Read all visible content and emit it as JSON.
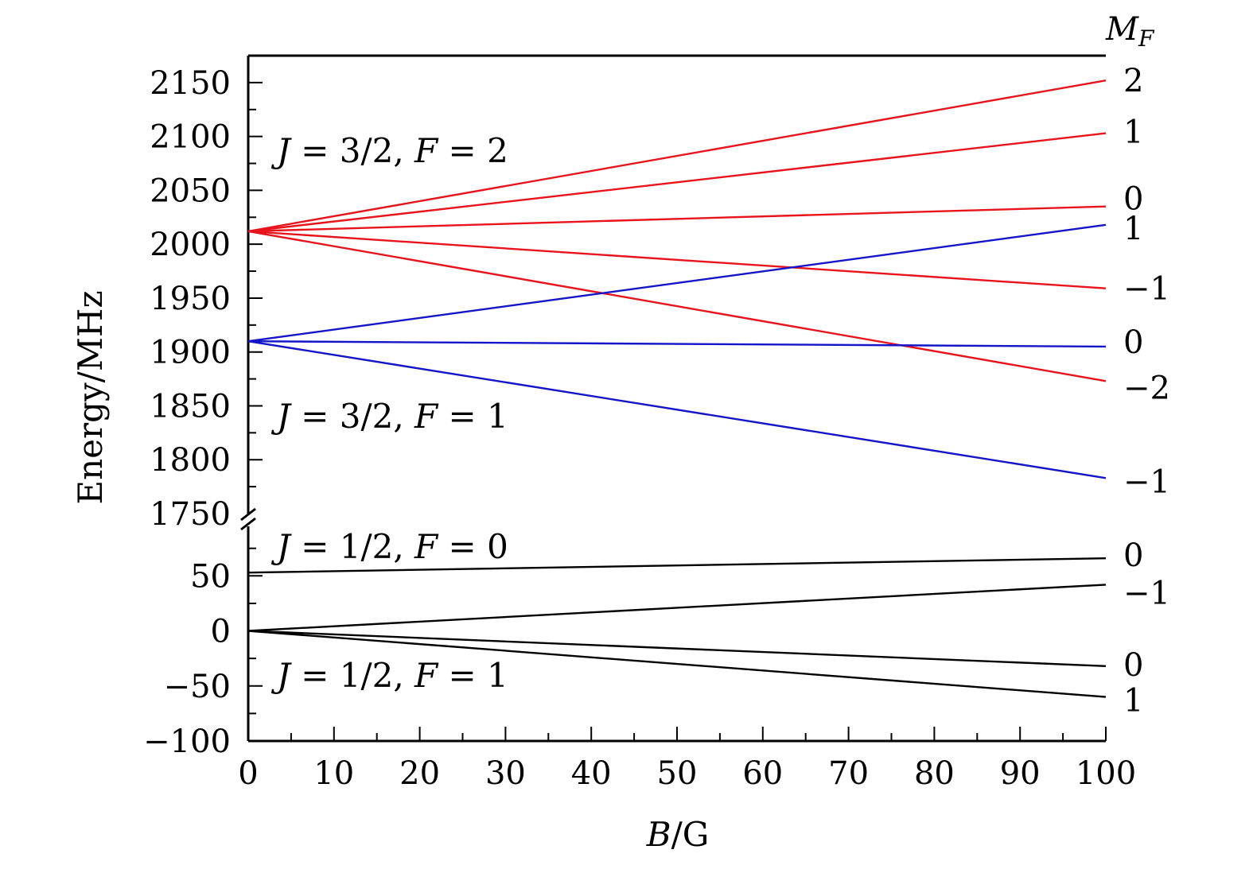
{
  "chart_data": {
    "type": "line",
    "xlabel": "B/G",
    "xlabel_parts": {
      "var": "B",
      "rest": "/G"
    },
    "ylabel": "Energy/MHz",
    "xlim": [
      0,
      100
    ],
    "x_ticks": [
      "0",
      "10",
      "20",
      "30",
      "40",
      "50",
      "60",
      "70",
      "80",
      "90",
      "100"
    ],
    "y_axis_break": true,
    "upper_panel": {
      "ylim": [
        1750,
        2175
      ],
      "y_ticks": [
        "1750",
        "1800",
        "1850",
        "1900",
        "1950",
        "2000",
        "2050",
        "2100",
        "2150"
      ]
    },
    "lower_panel": {
      "ylim": [
        -100,
        95
      ],
      "y_ticks": [
        "50",
        "0",
        "−50",
        "−100"
      ]
    },
    "mf_header": {
      "var": "M",
      "sub": "F"
    },
    "annotations": [
      {
        "J": "3/2",
        "F": "2"
      },
      {
        "J": "3/2",
        "F": "1"
      },
      {
        "J": "1/2",
        "F": "0"
      },
      {
        "J": "1/2",
        "F": "1"
      }
    ],
    "annotation_labels": {
      "J": "J",
      "F": "F",
      "eq": "=",
      "sep": ","
    },
    "colors": {
      "F2": "#e8141c",
      "F1_upper": "#1414c8",
      "lower": "#000000",
      "axis": "#000000"
    },
    "series": [
      {
        "name": "J=3/2, F=2, MF=2",
        "panel": "upper",
        "color": "#e8141c",
        "mf": "2",
        "x": [
          0,
          100
        ],
        "y": [
          2012,
          2152
        ]
      },
      {
        "name": "J=3/2, F=2, MF=1",
        "panel": "upper",
        "color": "#e8141c",
        "mf": "1",
        "x": [
          0,
          100
        ],
        "y": [
          2012,
          2103
        ]
      },
      {
        "name": "J=3/2, F=2, MF=0",
        "panel": "upper",
        "color": "#e8141c",
        "mf": "0",
        "x": [
          0,
          100
        ],
        "y": [
          2012,
          2035
        ]
      },
      {
        "name": "J=3/2, F=2, MF=-1",
        "panel": "upper",
        "color": "#e8141c",
        "mf": "−1",
        "x": [
          0,
          100
        ],
        "y": [
          2012,
          1959
        ]
      },
      {
        "name": "J=3/2, F=2, MF=-2",
        "panel": "upper",
        "color": "#e8141c",
        "mf": "−2",
        "x": [
          0,
          100
        ],
        "y": [
          2012,
          1873
        ]
      },
      {
        "name": "J=3/2, F=1, MF=1",
        "panel": "upper",
        "color": "#1414c8",
        "mf": "1",
        "x": [
          0,
          100
        ],
        "y": [
          1910,
          2018
        ]
      },
      {
        "name": "J=3/2, F=1, MF=0",
        "panel": "upper",
        "color": "#1414c8",
        "mf": "0",
        "x": [
          0,
          100
        ],
        "y": [
          1910,
          1905
        ]
      },
      {
        "name": "J=3/2, F=1, MF=-1",
        "panel": "upper",
        "color": "#1414c8",
        "mf": "−1",
        "x": [
          0,
          100
        ],
        "y": [
          1910,
          1783
        ]
      },
      {
        "name": "J=1/2, F=0, MF=0",
        "panel": "lower",
        "color": "#000000",
        "mf": "0",
        "x": [
          0,
          100
        ],
        "y": [
          53,
          66
        ]
      },
      {
        "name": "J=1/2, F=1, MF=-1",
        "panel": "lower",
        "color": "#000000",
        "mf": "−1",
        "x": [
          0,
          100
        ],
        "y": [
          0,
          42
        ]
      },
      {
        "name": "J=1/2, F=1, MF=0",
        "panel": "lower",
        "color": "#000000",
        "mf": "0",
        "x": [
          0,
          100
        ],
        "y": [
          0,
          -32
        ]
      },
      {
        "name": "J=1/2, F=1, MF=1",
        "panel": "lower",
        "color": "#000000",
        "mf": "1",
        "x": [
          0,
          100
        ],
        "y": [
          0,
          -60
        ]
      }
    ]
  }
}
